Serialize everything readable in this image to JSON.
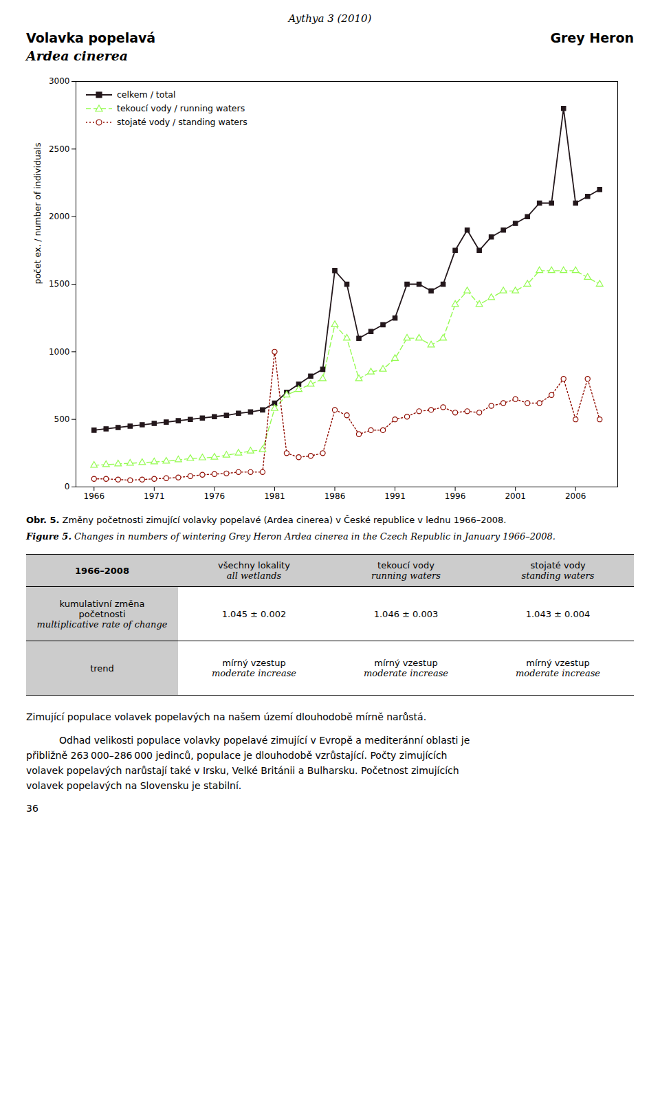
{
  "header": {
    "journal": "Aythya 3 (2010)",
    "title_left": [
      "Volavka popelavá",
      "Ardea cinerea"
    ],
    "title_right": "Grey Heron"
  },
  "chart_data": {
    "type": "line",
    "ylabel": "počet ex. / number of individuals",
    "x": [
      1966,
      1967,
      1968,
      1969,
      1970,
      1971,
      1972,
      1973,
      1974,
      1975,
      1976,
      1977,
      1978,
      1979,
      1980,
      1981,
      1982,
      1983,
      1984,
      1985,
      1986,
      1987,
      1988,
      1989,
      1990,
      1991,
      1992,
      1993,
      1994,
      1995,
      1996,
      1997,
      1998,
      1999,
      2000,
      2001,
      2002,
      2003,
      2004,
      2005,
      2006,
      2007,
      2008
    ],
    "xlim": [
      1964.5,
      2009.5
    ],
    "xticks": [
      1966,
      1971,
      1976,
      1981,
      1986,
      1991,
      1996,
      2001,
      2006
    ],
    "ylim": [
      0,
      3000
    ],
    "yticks": [
      0,
      500,
      1000,
      1500,
      2000,
      2500,
      3000
    ],
    "grid": false,
    "legend": "upper left",
    "series": [
      {
        "name": "celkem / total",
        "marker": "square",
        "line_style": "solid",
        "values": [
          420,
          430,
          440,
          450,
          460,
          470,
          480,
          490,
          500,
          510,
          520,
          530,
          545,
          555,
          570,
          620,
          700,
          760,
          820,
          870,
          1600,
          1500,
          1100,
          1150,
          1200,
          1250,
          1500,
          1500,
          1450,
          1500,
          1750,
          1900,
          1750,
          1850,
          1900,
          1950,
          2000,
          2100,
          2100,
          2800,
          2100,
          2150,
          2200
        ]
      },
      {
        "name": "tekoucí vody / running waters",
        "marker": "triangle",
        "line_style": "dashed",
        "values": [
          160,
          165,
          170,
          175,
          180,
          185,
          190,
          200,
          210,
          215,
          220,
          235,
          250,
          265,
          275,
          580,
          680,
          720,
          760,
          800,
          1200,
          1100,
          800,
          850,
          870,
          950,
          1100,
          1100,
          1050,
          1100,
          1350,
          1450,
          1350,
          1400,
          1450,
          1450,
          1500,
          1600,
          1600,
          1600,
          1600,
          1550,
          1500
        ]
      },
      {
        "name": "stojaté vody / standing waters",
        "marker": "circle",
        "line_style": "dotted",
        "values": [
          60,
          60,
          55,
          50,
          55,
          60,
          65,
          70,
          80,
          90,
          95,
          100,
          110,
          110,
          110,
          1000,
          250,
          220,
          230,
          250,
          570,
          530,
          390,
          420,
          420,
          500,
          520,
          560,
          570,
          590,
          550,
          560,
          550,
          600,
          620,
          650,
          620,
          620,
          680,
          800,
          500,
          800,
          500
        ]
      }
    ]
  },
  "captions": [
    {
      "label": "Obr. 5.",
      "text": "Změny početnosti zimující volavky popelavé (Ardea cinerea) v České republice v lednu 1966–2008."
    },
    {
      "label": "Figure 5.",
      "text": "Changes in numbers of wintering Grey Heron Ardea cinerea in the Czech Republic in January 1966–2008."
    }
  ],
  "table": {
    "color": "#cccccc",
    "header": [
      [
        "1966–2008"
      ],
      [
        "všechny lokality",
        "all wetlands"
      ],
      [
        "tekoucí vody",
        "running waters"
      ],
      [
        "stojaté vody",
        "standing waters"
      ]
    ],
    "rows": [
      [
        [
          "kumulativní změna",
          "početnosti",
          "multiplicative rate of change"
        ],
        [
          "1.045 ± 0.002"
        ],
        [
          "1.046 ± 0.003"
        ],
        [
          "1.043 ± 0.004"
        ]
      ],
      [
        [
          "trend"
        ],
        [
          "mírný vzestup",
          "moderate increase"
        ],
        [
          "mírný vzestup",
          "moderate increase"
        ],
        [
          "mírný vzestup",
          "moderate increase"
        ]
      ]
    ]
  },
  "paragraphs": [
    [
      "Zimující populace volavek popelavých na našem území dlouhodobě mírně narůstá."
    ],
    [
      "Odhad velikosti populace volavky popelavé zimující v Evropě a mediteránní oblasti je",
      "přibližně 263 000–286 000 jedinců, populace je dlouhodobě vzrůstající. Počty zimujících",
      "volavek popelavých narůstají také v Irsku, Velké Británii a Bulharsku. Početnost zimujících",
      "volavek popelavých na Slovensku je stabilní."
    ]
  ],
  "page_number": "36"
}
